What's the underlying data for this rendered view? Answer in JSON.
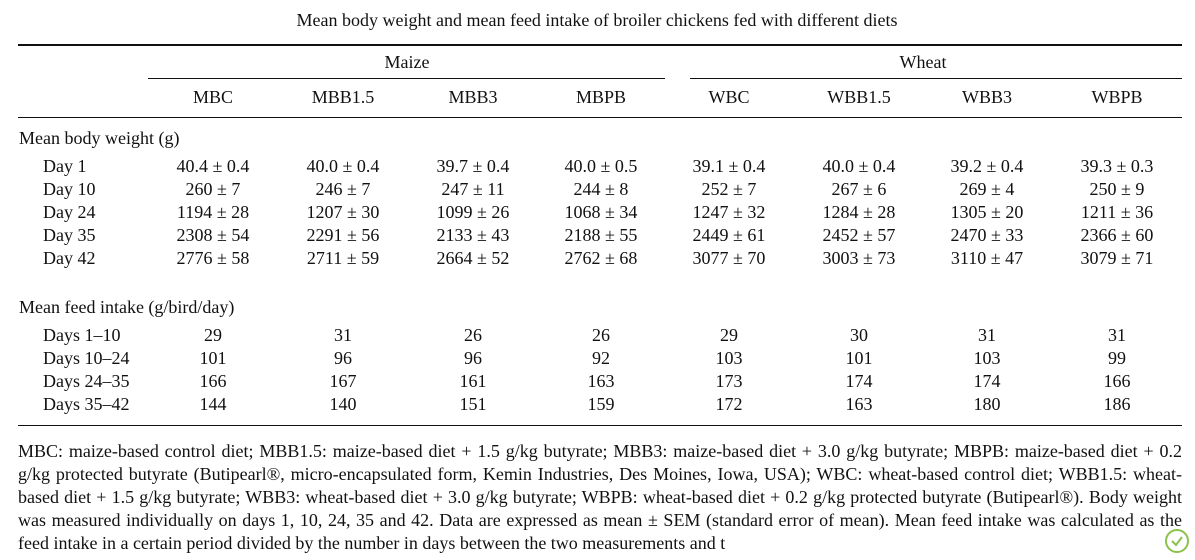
{
  "title": "Mean body weight and mean feed intake of broiler chickens fed with different diets",
  "table": {
    "groups": [
      "Maize",
      "Wheat"
    ],
    "columns": [
      "MBC",
      "MBB1.5",
      "MBB3",
      "MBPB",
      "WBC",
      "WBB1.5",
      "WBB3",
      "WBPB"
    ],
    "sections": [
      {
        "label": "Mean body weight (g)",
        "rows": [
          {
            "label": "Day 1",
            "values": [
              "40.4 ± 0.4",
              "40.0 ± 0.4",
              "39.7 ± 0.4",
              "40.0 ± 0.5",
              "39.1 ± 0.4",
              "40.0 ± 0.4",
              "39.2 ± 0.4",
              "39.3 ± 0.3"
            ]
          },
          {
            "label": "Day 10",
            "values": [
              "260 ± 7",
              "246 ± 7",
              "247 ± 11",
              "244 ± 8",
              "252 ± 7",
              "267 ± 6",
              "269 ± 4",
              "250 ± 9"
            ]
          },
          {
            "label": "Day 24",
            "values": [
              "1194 ± 28",
              "1207 ± 30",
              "1099 ± 26",
              "1068 ± 34",
              "1247 ± 32",
              "1284 ± 28",
              "1305 ± 20",
              "1211 ± 36"
            ]
          },
          {
            "label": "Day 35",
            "values": [
              "2308 ± 54",
              "2291 ± 56",
              "2133 ± 43",
              "2188 ± 55",
              "2449 ± 61",
              "2452 ± 57",
              "2470 ± 33",
              "2366 ± 60"
            ]
          },
          {
            "label": "Day 42",
            "values": [
              "2776 ± 58",
              "2711 ± 59",
              "2664 ± 52",
              "2762 ± 68",
              "3077 ± 70",
              "3003 ± 73",
              "3110 ± 47",
              "3079 ± 71"
            ]
          }
        ]
      },
      {
        "label": "Mean feed intake (g/bird/day)",
        "rows": [
          {
            "label": "Days 1–10",
            "values": [
              "29",
              "31",
              "26",
              "26",
              "29",
              "30",
              "31",
              "31"
            ]
          },
          {
            "label": "Days 10–24",
            "values": [
              "101",
              "96",
              "96",
              "92",
              "103",
              "101",
              "103",
              "99"
            ]
          },
          {
            "label": "Days 24–35",
            "values": [
              "166",
              "167",
              "161",
              "163",
              "173",
              "174",
              "174",
              "166"
            ]
          },
          {
            "label": "Days 35–42",
            "values": [
              "144",
              "140",
              "151",
              "159",
              "172",
              "163",
              "180",
              "186"
            ]
          }
        ]
      }
    ]
  },
  "footnote": "MBC: maize-based control diet; MBB1.5: maize-based diet + 1.5 g/kg butyrate; MBB3: maize-based diet + 3.0 g/kg butyrate; MBPB: maize-based diet + 0.2 g/kg protected butyrate (Butipearl®, micro-encapsulated form, Kemin Industries, Des Moines, Iowa, USA); WBC: wheat-based control diet; WBB1.5: wheat-based diet + 1.5 g/kg butyrate; WBB3: wheat-based diet + 3.0 g/kg butyrate; WBPB: wheat-based diet + 0.2 g/kg protected butyrate (Butipearl®). Body weight was measured individually on days 1, 10, 24, 35 and 42. Data are expressed as mean ± SEM (standard error of mean). Mean feed intake was calculated as the feed intake in a certain period divided by the number in days between the two measurements and t"
}
